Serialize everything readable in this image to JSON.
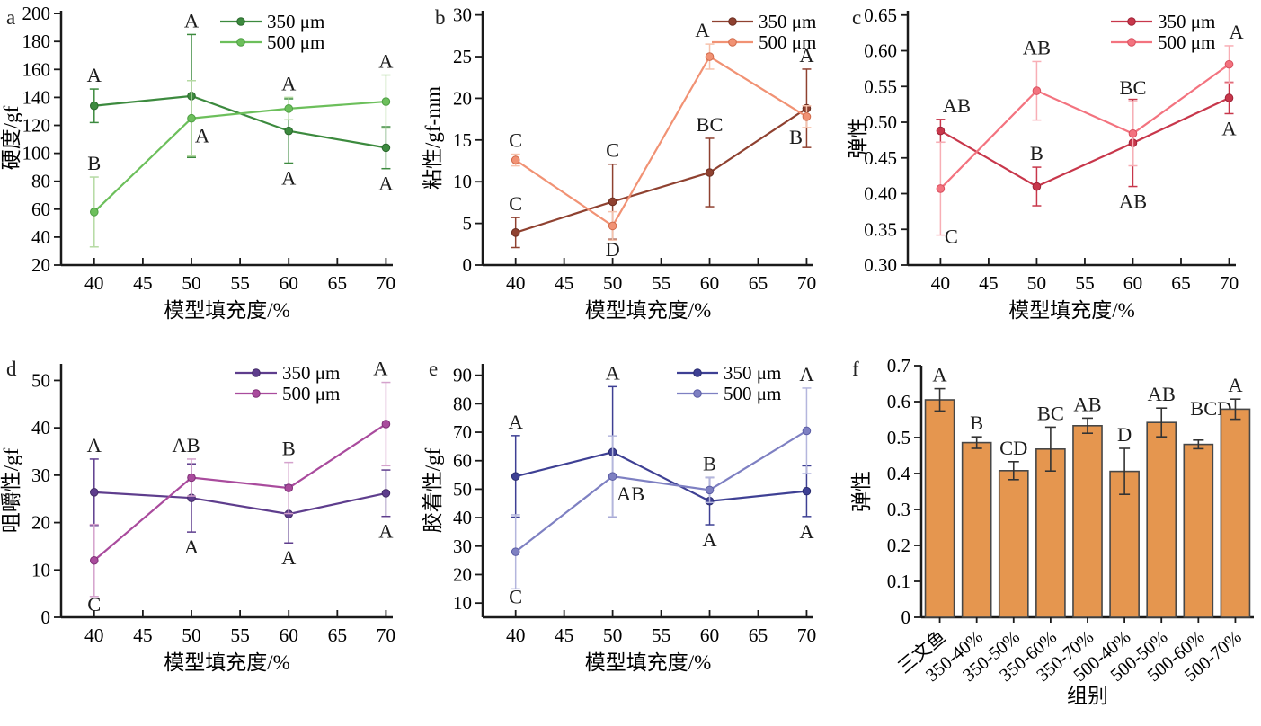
{
  "figure": {
    "background": "#ffffff",
    "description_labels": {
      "x_axis_line_panels": "模型填充度/%",
      "group_axis": "组别"
    }
  },
  "chart_data": [
    {
      "panel_label": "a",
      "type": "line",
      "title": "",
      "xlabel": "模型填充度/%",
      "ylabel": "硬度/gf",
      "xlim": [
        36.6,
        70.7
      ],
      "ylim": [
        20,
        202
      ],
      "grid": false,
      "legend_position": "top-right",
      "xticks": [
        40,
        45,
        50,
        55,
        60,
        65,
        70
      ],
      "xtick_labels": [
        "40",
        "45",
        "50",
        "55",
        "60",
        "65",
        "70"
      ],
      "yticks": [
        20,
        40,
        60,
        80,
        100,
        120,
        140,
        160,
        180,
        200
      ],
      "ytick_labels": [
        "20",
        "40",
        "60",
        "80",
        "100",
        "120",
        "140",
        "160",
        "180",
        "200"
      ],
      "x": [
        40,
        50,
        60,
        70
      ],
      "legend": [
        "350 μm",
        "500 μm"
      ],
      "series": [
        {
          "name": "350 μm",
          "color": "#3c8a3e",
          "marker_edge": "#2a672c",
          "err_color": "#3c8a3e",
          "values": [
            134,
            141,
            116,
            104
          ],
          "errors": [
            12,
            44,
            23,
            15
          ],
          "letters": [
            {
              "t": "A",
              "p": "above"
            },
            {
              "t": "A",
              "p": "above"
            },
            {
              "t": "A",
              "p": "below"
            },
            {
              "t": "A",
              "p": "below"
            }
          ]
        },
        {
          "name": "500 μm",
          "color": "#6cbf5b",
          "marker_edge": "#4d9e43",
          "err_color": "#b5daa3",
          "values": [
            58,
            125,
            132,
            137
          ],
          "errors": [
            25,
            27,
            8,
            19
          ],
          "letters": [
            {
              "t": "B",
              "p": "above"
            },
            {
              "t": "A",
              "p": "below",
              "dx": 12,
              "dy": -39
            },
            {
              "t": "A",
              "p": "above"
            },
            {
              "t": "A",
              "p": "above"
            }
          ]
        }
      ]
    },
    {
      "panel_label": "b",
      "type": "line",
      "title": "",
      "xlabel": "模型填充度/%",
      "ylabel": "粘性/gf-mm",
      "xlim": [
        36.6,
        70.7
      ],
      "ylim": [
        0,
        30.5
      ],
      "grid": false,
      "legend_position": "top-right",
      "xticks": [
        40,
        45,
        50,
        55,
        60,
        65,
        70
      ],
      "xtick_labels": [
        "40",
        "45",
        "50",
        "55",
        "60",
        "65",
        "70"
      ],
      "yticks": [
        0,
        5,
        10,
        15,
        20,
        25,
        30
      ],
      "ytick_labels": [
        "0",
        "5",
        "10",
        "15",
        "20",
        "25",
        "30"
      ],
      "x": [
        40,
        50,
        60,
        70
      ],
      "legend": [
        "350 μm",
        "500 μm"
      ],
      "series": [
        {
          "name": "350 μm",
          "color": "#8f4130",
          "marker_edge": "#6b2e21",
          "err_color": "#8f4130",
          "values": [
            3.9,
            7.6,
            11.1,
            18.8
          ],
          "errors": [
            1.8,
            4.5,
            4.1,
            4.7
          ],
          "letters": [
            {
              "t": "C",
              "p": "above"
            },
            {
              "t": "C",
              "p": "above"
            },
            {
              "t": "BC",
              "p": "above"
            },
            {
              "t": "A",
              "p": "above"
            }
          ]
        },
        {
          "name": "500 μm",
          "color": "#f19274",
          "marker_edge": "#d06a4a",
          "err_color": "#f6c2ac",
          "values": [
            12.6,
            4.7,
            25.0,
            17.8
          ],
          "errors": [
            0.7,
            1.7,
            1.5,
            1.3
          ],
          "letters": [
            {
              "t": "C",
              "p": "above"
            },
            {
              "t": "D",
              "p": "below",
              "dy": -6
            },
            {
              "t": "A",
              "p": "above",
              "dx": -8
            },
            {
              "t": "B",
              "p": "below",
              "dx": -12,
              "dy": -6
            }
          ]
        }
      ]
    },
    {
      "panel_label": "c",
      "type": "line",
      "title": "",
      "xlabel": "模型填充度/%",
      "ylabel": "弹性",
      "xlim": [
        36.6,
        70.7
      ],
      "ylim": [
        0.3,
        0.656
      ],
      "grid": false,
      "legend_position": "top-right",
      "xticks": [
        40,
        45,
        50,
        55,
        60,
        65,
        70
      ],
      "xtick_labels": [
        "40",
        "45",
        "50",
        "55",
        "60",
        "65",
        "70"
      ],
      "yticks": [
        0.3,
        0.35,
        0.4,
        0.45,
        0.5,
        0.55,
        0.6,
        0.65
      ],
      "ytick_labels": [
        "0.30",
        "0.35",
        "0.40",
        "0.45",
        "0.50",
        "0.55",
        "0.60",
        "0.65"
      ],
      "x": [
        40,
        50,
        60,
        70
      ],
      "legend": [
        "350 μm",
        "500 μm"
      ],
      "series": [
        {
          "name": "350 μm",
          "color": "#c8374b",
          "marker_edge": "#9f2338",
          "err_color": "#c8374b",
          "values": [
            0.488,
            0.41,
            0.471,
            0.534
          ],
          "errors": [
            0.016,
            0.027,
            0.061,
            0.022
          ],
          "letters": [
            {
              "t": "AB",
              "p": "above",
              "dx": 18
            },
            {
              "t": "B",
              "p": "above"
            },
            {
              "t": "AB",
              "p": "below"
            },
            {
              "t": "A",
              "p": "below"
            }
          ]
        },
        {
          "name": "500 μm",
          "color": "#f3737f",
          "marker_edge": "#d84f5e",
          "err_color": "#f8aeb5",
          "values": [
            0.407,
            0.544,
            0.484,
            0.581
          ],
          "errors": [
            0.065,
            0.041,
            0.045,
            0.026
          ],
          "letters": [
            {
              "t": "C",
              "p": "below",
              "dx": 12,
              "dy": -15
            },
            {
              "t": "AB",
              "p": "above"
            },
            {
              "t": "BC",
              "p": "above"
            },
            {
              "t": "A",
              "p": "above",
              "dx": 8
            }
          ]
        }
      ]
    },
    {
      "panel_label": "d",
      "type": "line",
      "title": "",
      "xlabel": "模型填充度/%",
      "ylabel": "咀嚼性/gf",
      "xlim": [
        36.6,
        70.7
      ],
      "ylim": [
        0,
        53.5
      ],
      "grid": false,
      "legend_position": "top-right",
      "xticks": [
        40,
        45,
        50,
        55,
        60,
        65,
        70
      ],
      "xtick_labels": [
        "40",
        "45",
        "50",
        "55",
        "60",
        "65",
        "70"
      ],
      "yticks": [
        0,
        10,
        20,
        30,
        40,
        50
      ],
      "ytick_labels": [
        "0",
        "10",
        "20",
        "30",
        "40",
        "50"
      ],
      "x": [
        40,
        50,
        60,
        70
      ],
      "legend": [
        "350 μm",
        "500 μm"
      ],
      "series": [
        {
          "name": "350 μm",
          "color": "#5e3d8d",
          "marker_edge": "#422a66",
          "err_color": "#5e3d8d",
          "values": [
            26.4,
            25.2,
            21.8,
            26.2
          ],
          "errors": [
            7.0,
            7.2,
            6.1,
            4.9
          ],
          "letters": [
            {
              "t": "A",
              "p": "above"
            },
            {
              "t": "A",
              "p": "below"
            },
            {
              "t": "A",
              "p": "below"
            },
            {
              "t": "A",
              "p": "below"
            }
          ]
        },
        {
          "name": "500 μm",
          "color": "#a94b9d",
          "marker_edge": "#7f2f76",
          "err_color": "#d4a2cc",
          "values": [
            12.0,
            29.5,
            27.3,
            40.8
          ],
          "errors": [
            7.6,
            3.9,
            5.4,
            8.8
          ],
          "letters": [
            {
              "t": "C",
              "p": "below",
              "dy": -8
            },
            {
              "t": "AB",
              "p": "above",
              "dx": -6
            },
            {
              "t": "B",
              "p": "above"
            },
            {
              "t": "A",
              "p": "above",
              "dx": -6
            }
          ]
        }
      ]
    },
    {
      "panel_label": "e",
      "type": "line",
      "title": "",
      "xlabel": "模型填充度/%",
      "ylabel": "胶着性/gf",
      "xlim": [
        36.6,
        70.7
      ],
      "ylim": [
        5,
        94
      ],
      "grid": false,
      "legend_position": "top-right",
      "xticks": [
        40,
        45,
        50,
        55,
        60,
        65,
        70
      ],
      "xtick_labels": [
        "40",
        "45",
        "50",
        "55",
        "60",
        "65",
        "70"
      ],
      "yticks": [
        10,
        20,
        30,
        40,
        50,
        60,
        70,
        80,
        90
      ],
      "ytick_labels": [
        "10",
        "20",
        "30",
        "40",
        "50",
        "60",
        "70",
        "80",
        "90"
      ],
      "x": [
        40,
        50,
        60,
        70
      ],
      "legend": [
        "350 μm",
        "500 μm"
      ],
      "series": [
        {
          "name": "350 μm",
          "color": "#3e4094",
          "marker_edge": "#2a2c70",
          "err_color": "#3e4094",
          "values": [
            54.5,
            63.0,
            45.8,
            49.3
          ],
          "errors": [
            14.3,
            23.0,
            8.3,
            8.9
          ],
          "letters": [
            {
              "t": "A",
              "p": "above"
            },
            {
              "t": "A",
              "p": "above"
            },
            {
              "t": "A",
              "p": "below"
            },
            {
              "t": "A",
              "p": "below"
            }
          ]
        },
        {
          "name": "500 μm",
          "color": "#7e80c2",
          "marker_edge": "#5b5da5",
          "err_color": "#b4b6dd",
          "values": [
            28.0,
            54.5,
            49.7,
            70.5
          ],
          "errors": [
            13.0,
            14.2,
            4.4,
            15.0
          ],
          "letters": [
            {
              "t": "C",
              "p": "below",
              "dy": -8
            },
            {
              "t": "AB",
              "p": "below",
              "dx": 20,
              "dy": -42
            },
            {
              "t": "B",
              "p": "above"
            },
            {
              "t": "A",
              "p": "above"
            }
          ]
        }
      ]
    },
    {
      "panel_label": "f",
      "type": "bar",
      "title": "",
      "xlabel": "组别",
      "ylabel": "弹性",
      "ylim": [
        0,
        0.7
      ],
      "grid": false,
      "yticks": [
        0,
        0.1,
        0.2,
        0.3,
        0.4,
        0.5,
        0.6,
        0.7
      ],
      "ytick_labels": [
        "0",
        "0.1",
        "0.2",
        "0.3",
        "0.4",
        "0.5",
        "0.6",
        "0.7"
      ],
      "categories": [
        "三文鱼",
        "350-40%",
        "350-50%",
        "350-60%",
        "350-70%",
        "500-40%",
        "500-50%",
        "500-60%",
        "500-70%"
      ],
      "values": [
        0.605,
        0.486,
        0.408,
        0.468,
        0.533,
        0.406,
        0.542,
        0.481,
        0.579
      ],
      "errors": [
        0.031,
        0.016,
        0.025,
        0.061,
        0.021,
        0.064,
        0.04,
        0.012,
        0.028
      ],
      "letters": [
        {
          "t": "A"
        },
        {
          "t": "B"
        },
        {
          "t": "CD"
        },
        {
          "t": "BC"
        },
        {
          "t": "AB"
        },
        {
          "t": "D"
        },
        {
          "t": "AB"
        },
        {
          "t": "BCD",
          "dx": 14,
          "dy": -20
        },
        {
          "t": "A"
        }
      ],
      "bar": {
        "fill": "#e5964f",
        "edge": "#474747",
        "err_color": "#333333"
      }
    }
  ]
}
